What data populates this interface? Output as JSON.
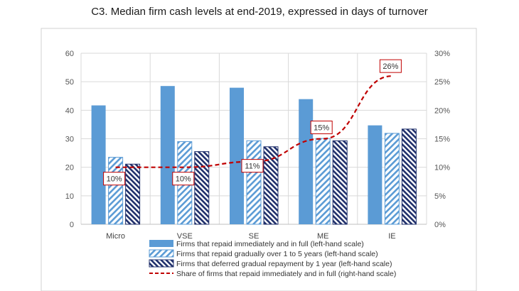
{
  "chart_data": {
    "type": "bar",
    "title": "C3. Median firm cash levels at end-2019, expressed in days of turnover",
    "categories": [
      "Micro",
      "VSE",
      "SE",
      "ME",
      "IE"
    ],
    "series": [
      {
        "name": "Firms that repaid immediately and in full (left-hand scale)",
        "values": [
          41.7,
          48.5,
          47.9,
          43.9,
          34.7
        ],
        "axis": "left",
        "style": "solid",
        "color": "#5b9bd5"
      },
      {
        "name": "Firms that repaid gradually over 1 to 5 years (left-hand scale)",
        "values": [
          23.5,
          29.0,
          29.3,
          30.1,
          31.9
        ],
        "axis": "left",
        "style": "diagonal-hatch",
        "color": "#5b9bd5"
      },
      {
        "name": "Firms that deferred gradual repayment by 1 year (left-hand scale)",
        "values": [
          21.1,
          25.5,
          27.2,
          29.3,
          33.4
        ],
        "axis": "left",
        "style": "navy-hatch",
        "color": "#1f2f6b"
      }
    ],
    "line_series": {
      "name": "Share of firms that repaid immediately and in full (right-hand scale)",
      "values": [
        10,
        10,
        11,
        15,
        26
      ],
      "labels": [
        "10%",
        "10%",
        "11%",
        "15%",
        "26%"
      ],
      "axis": "right",
      "color": "#c00000",
      "style": "dashed"
    },
    "ylim_left": [
      0,
      60
    ],
    "yticks_left": [
      "0",
      "10",
      "20",
      "30",
      "40",
      "50",
      "60"
    ],
    "ylim_right": [
      0,
      30
    ],
    "yticks_right": [
      "0%",
      "5%",
      "10%",
      "15%",
      "20%",
      "25%",
      "30%"
    ],
    "grid": "horizontal and vertical",
    "legend_placement": "bottom"
  }
}
